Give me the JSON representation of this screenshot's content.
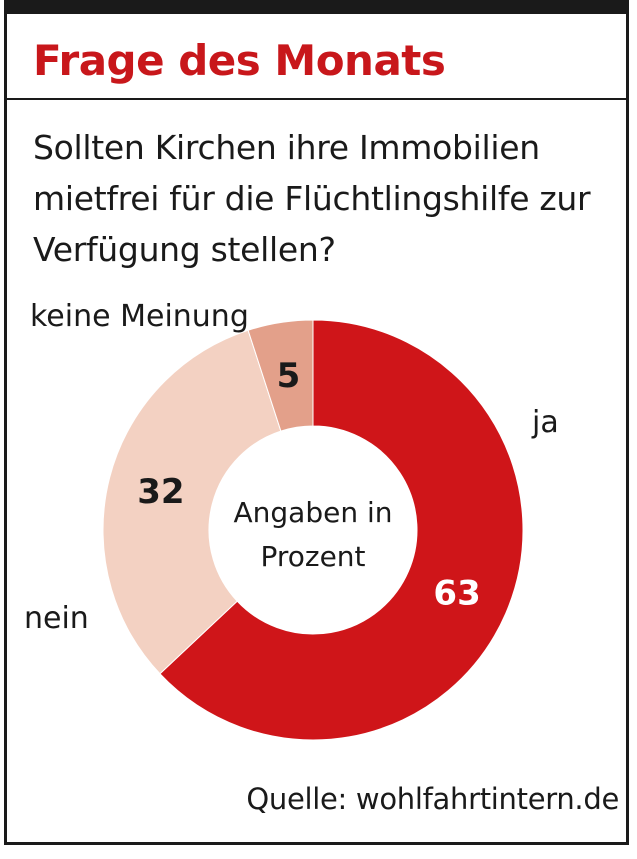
{
  "header": {
    "title": "Frage des Monats"
  },
  "question": "Sollten Kirchen ihre Immobilien mietfrei für die Flüchtlingshilfe zur Verfügung stellen?",
  "center_label": [
    "Angaben in",
    "Prozent"
  ],
  "source": "Quelle: wohlfahrtintern.de",
  "colors": {
    "accent": "#c8171b",
    "ja": "#cf1519",
    "nein": "#f3d1c2",
    "keine_meinung": "#e3a08a",
    "text": "#1a1a1a",
    "white": "#ffffff"
  },
  "chart_data": {
    "type": "pie",
    "donut": true,
    "unit": "Prozent",
    "slices": [
      {
        "label": "ja",
        "value": 63,
        "color": "#cf1519",
        "value_color": "#ffffff"
      },
      {
        "label": "nein",
        "value": 32,
        "color": "#f3d1c2",
        "value_color": "#1a1a1a"
      },
      {
        "label": "keine Meinung",
        "value": 5,
        "color": "#e3a08a",
        "value_color": "#1a1a1a"
      }
    ]
  }
}
